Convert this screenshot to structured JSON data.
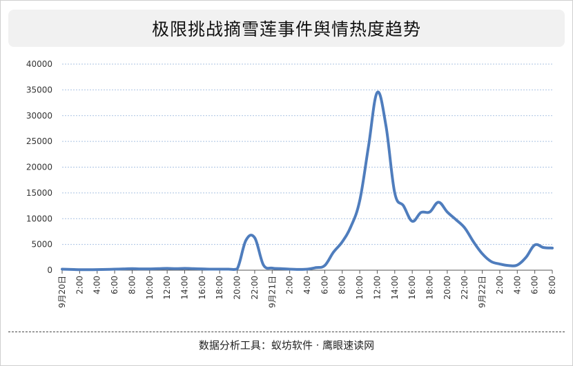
{
  "title": "极限挑战摘雪莲事件舆情热度趋势",
  "footer": "数据分析工具：蚁坊软件 · 鹰眼速读网",
  "chart_data": {
    "type": "line",
    "title": "极限挑战摘雪莲事件舆情热度趋势",
    "xlabel": "",
    "ylabel": "",
    "ylim": [
      0,
      40000
    ],
    "yticks": [
      0,
      5000,
      10000,
      15000,
      20000,
      25000,
      30000,
      35000,
      40000
    ],
    "grid": true,
    "legend": "none",
    "line_color": "#4f7dbd",
    "grid_color": "#a9c1e2",
    "x_tick_labels": [
      "9月20日",
      "2:00",
      "4:00",
      "6:00",
      "8:00",
      "10:00",
      "12:00",
      "14:00",
      "16:00",
      "18:00",
      "20:00",
      "22:00",
      "9月21日",
      "2:00",
      "4:00",
      "6:00",
      "8:00",
      "10:00",
      "12:00",
      "14:00",
      "16:00",
      "18:00",
      "20:00",
      "22:00",
      "9月22日",
      "2:00",
      "4:00",
      "6:00",
      "8:00"
    ],
    "series": [
      {
        "x": [
          0,
          1,
          2,
          3,
          4,
          5,
          6,
          7,
          8,
          9,
          10,
          11,
          12,
          13,
          14,
          15,
          16,
          17,
          18,
          19,
          20,
          21,
          22,
          23,
          24,
          25,
          26,
          27,
          28,
          29,
          30,
          31,
          32,
          33,
          34,
          35,
          36,
          37,
          38,
          39,
          40,
          41,
          42,
          43,
          44,
          45,
          46,
          47,
          48,
          49,
          50,
          51,
          52,
          53,
          54,
          55,
          56
        ],
        "values": [
          200,
          150,
          100,
          100,
          120,
          150,
          200,
          250,
          300,
          250,
          250,
          300,
          350,
          300,
          350,
          300,
          250,
          200,
          200,
          200,
          250,
          5800,
          6300,
          1000,
          400,
          300,
          200,
          150,
          200,
          500,
          900,
          3500,
          5500,
          8500,
          13500,
          24000,
          34500,
          28000,
          15000,
          12500,
          9500,
          11200,
          11300,
          13200,
          11300,
          9800,
          8200,
          5500,
          3200,
          1700,
          1200,
          900,
          1000,
          2500,
          4900,
          4400,
          4300
        ]
      }
    ]
  }
}
